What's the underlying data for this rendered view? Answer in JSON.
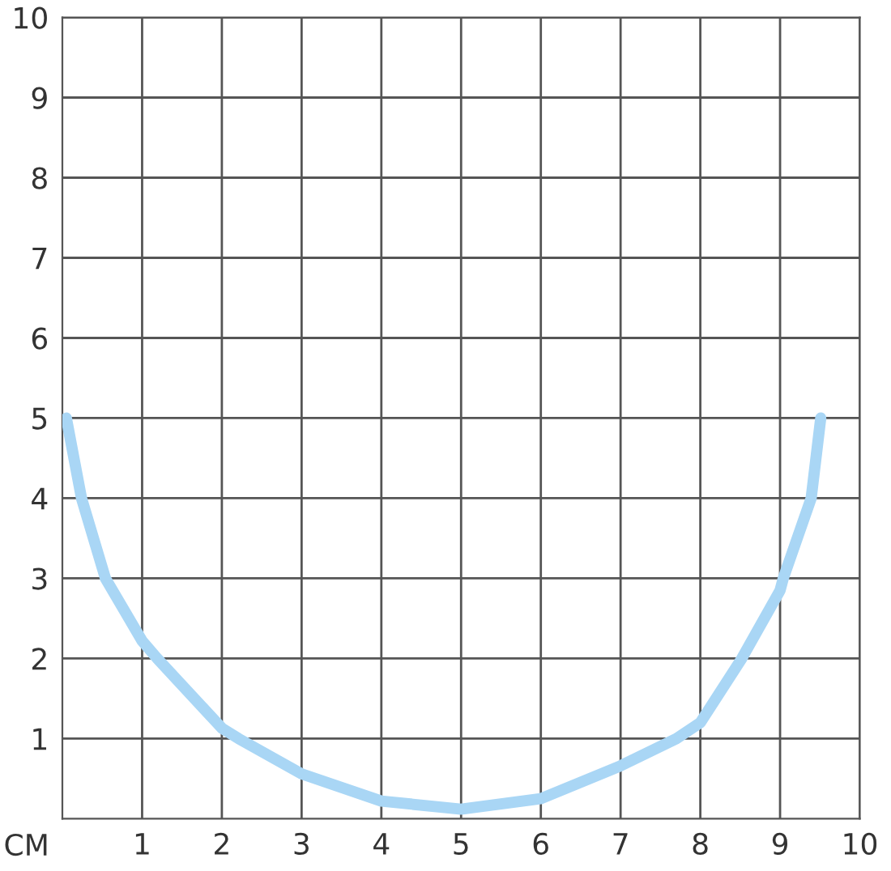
{
  "chart_data": {
    "type": "line",
    "xlabel": "CM",
    "series": [
      {
        "color": "#a9d6f5",
        "x": [
          0.05,
          0.24,
          0.54,
          1.0,
          1.19,
          2.0,
          2.21,
          3.0,
          4.0,
          5.0,
          6.0,
          7.0,
          7.7,
          8.0,
          8.52,
          9.0,
          9.04,
          9.39,
          9.51
        ],
        "values": [
          5,
          4,
          3,
          2.22,
          2,
          1.13,
          1,
          0.56,
          0.22,
          0.12,
          0.25,
          0.66,
          1,
          1.2,
          2,
          2.85,
          3,
          4,
          5
        ]
      }
    ],
    "xlim": [
      0,
      10
    ],
    "ylim": [
      0,
      10
    ],
    "xticks": [
      1,
      2,
      3,
      4,
      5,
      6,
      7,
      8,
      9,
      10
    ],
    "yticks": [
      1,
      2,
      3,
      4,
      5,
      6,
      7,
      8,
      9,
      10
    ],
    "grid": true,
    "marker": "none",
    "line_style": "solid"
  }
}
